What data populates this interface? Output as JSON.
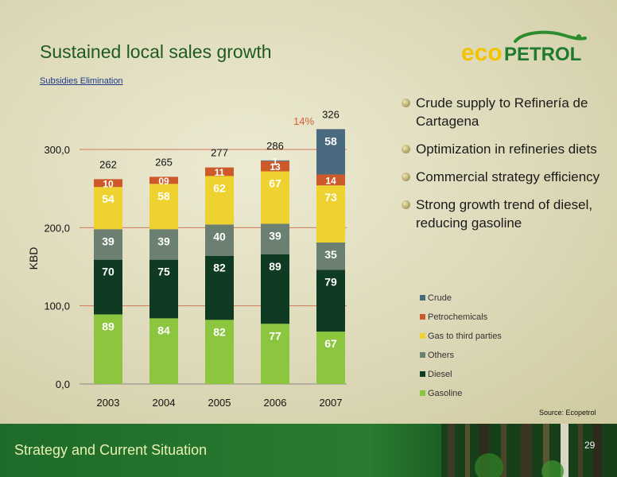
{
  "slide": {
    "title": "Sustained local sales growth",
    "subtitle": "Subsidies Elimination",
    "bullets": [
      "Crude supply to Refinería de Cartagena",
      "Optimization in refineries diets",
      "Commercial strategy efficiency",
      "Strong  growth trend of diesel, reducing gasoline"
    ],
    "source": "Source: Ecopetrol",
    "footer": "Strategy and Current  Situation",
    "page_number": "29",
    "logo_text": "ecopetrol"
  },
  "chart_data": {
    "type": "bar",
    "stacked": true,
    "categories": [
      "2003",
      "2004",
      "2005",
      "2006",
      "2007"
    ],
    "ylabel": "KBD",
    "ylim": [
      0,
      300
    ],
    "yticks": [
      "0,0",
      "100,0",
      "200,0",
      "300,0"
    ],
    "series": [
      {
        "name": "Gasoline",
        "color": "#8cc63f",
        "values": [
          89,
          84,
          82,
          77,
          67
        ],
        "labels": [
          "89",
          "84",
          "82",
          "77",
          "67"
        ]
      },
      {
        "name": "Diesel",
        "color": "#0f3b23",
        "values": [
          70,
          75,
          82,
          89,
          79
        ],
        "labels": [
          "70",
          "75",
          "82",
          "89",
          "79"
        ]
      },
      {
        "name": "Others",
        "color": "#6b8070",
        "values": [
          39,
          39,
          40,
          39,
          35
        ],
        "labels": [
          "39",
          "39",
          "40",
          "39",
          "35"
        ]
      },
      {
        "name": "Gas to third parties",
        "color": "#eed330",
        "values": [
          54,
          58,
          62,
          67,
          73
        ],
        "labels": [
          "54",
          "58",
          "62",
          "67",
          "73"
        ]
      },
      {
        "name": "Petrochemicals",
        "color": "#cc5a2a",
        "values": [
          10,
          9,
          11,
          13,
          14
        ],
        "labels": [
          "10",
          "09",
          "11",
          "13",
          "14"
        ]
      },
      {
        "name": "Crude",
        "color": "#4a6a80",
        "values": [
          0,
          0,
          0,
          1,
          58
        ],
        "labels": [
          "",
          "",
          "",
          "1",
          "58"
        ]
      }
    ],
    "totals": [
      "262",
      "265",
      "277",
      "286",
      "326"
    ],
    "annotation": "14%",
    "legend_order": [
      "Crude",
      "Petrochemicals",
      "Gas to third parties",
      "Others",
      "Diesel",
      "Gasoline"
    ],
    "legend_position": "right",
    "grid": true
  }
}
